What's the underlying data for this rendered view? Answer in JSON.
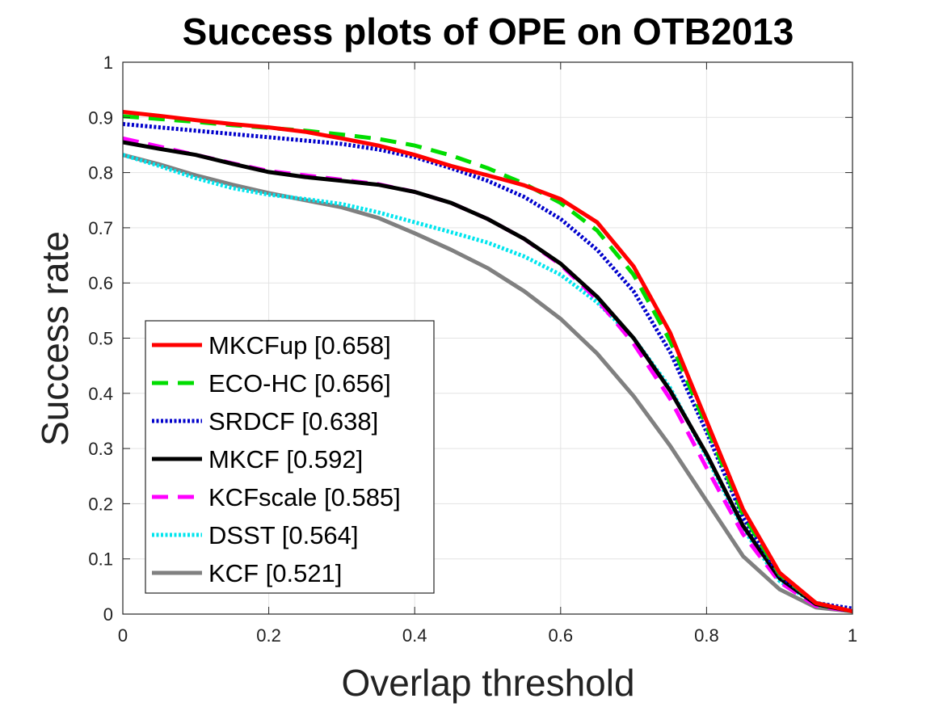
{
  "chart_data": {
    "type": "line",
    "title": "Success plots of OPE on OTB2013",
    "xlabel": "Overlap threshold",
    "ylabel": "Success rate",
    "xlim": [
      0,
      1
    ],
    "ylim": [
      0,
      1
    ],
    "xticks": [
      "0",
      "0.2",
      "0.4",
      "0.6",
      "0.8",
      "1"
    ],
    "yticks": [
      "0",
      "0.1",
      "0.2",
      "0.3",
      "0.4",
      "0.5",
      "0.6",
      "0.7",
      "0.8",
      "0.9",
      "1"
    ],
    "grid": true,
    "legend_position": "bottom-left",
    "series": [
      {
        "name": "MKCFup [0.658]",
        "color": "#ff0000",
        "dash": "solid",
        "x": [
          0,
          0.05,
          0.1,
          0.15,
          0.2,
          0.25,
          0.3,
          0.35,
          0.4,
          0.45,
          0.5,
          0.55,
          0.6,
          0.65,
          0.7,
          0.75,
          0.8,
          0.85,
          0.9,
          0.95,
          1
        ],
        "y": [
          0.91,
          0.903,
          0.895,
          0.888,
          0.882,
          0.874,
          0.862,
          0.849,
          0.832,
          0.812,
          0.795,
          0.777,
          0.752,
          0.71,
          0.63,
          0.51,
          0.35,
          0.19,
          0.075,
          0.02,
          0.005
        ]
      },
      {
        "name": "ECO-HC [0.656]",
        "color": "#00dd00",
        "dash": "dashed",
        "x": [
          0,
          0.05,
          0.1,
          0.15,
          0.2,
          0.25,
          0.3,
          0.35,
          0.4,
          0.45,
          0.5,
          0.55,
          0.6,
          0.65,
          0.7,
          0.75,
          0.8,
          0.85,
          0.9,
          0.95,
          1
        ],
        "y": [
          0.902,
          0.897,
          0.892,
          0.886,
          0.881,
          0.876,
          0.869,
          0.861,
          0.849,
          0.831,
          0.808,
          0.78,
          0.745,
          0.695,
          0.615,
          0.495,
          0.34,
          0.18,
          0.072,
          0.02,
          0.005
        ]
      },
      {
        "name": "SRDCF [0.638]",
        "color": "#0000cc",
        "dash": "dotted",
        "x": [
          0,
          0.05,
          0.1,
          0.15,
          0.2,
          0.25,
          0.3,
          0.35,
          0.4,
          0.45,
          0.5,
          0.55,
          0.6,
          0.65,
          0.7,
          0.75,
          0.8,
          0.85,
          0.9,
          0.95,
          1
        ],
        "y": [
          0.888,
          0.882,
          0.876,
          0.87,
          0.864,
          0.858,
          0.852,
          0.842,
          0.828,
          0.808,
          0.785,
          0.756,
          0.716,
          0.66,
          0.585,
          0.475,
          0.33,
          0.175,
          0.07,
          0.02,
          0.01
        ]
      },
      {
        "name": "MKCF [0.592]",
        "color": "#000000",
        "dash": "solid",
        "x": [
          0,
          0.05,
          0.1,
          0.15,
          0.2,
          0.25,
          0.3,
          0.35,
          0.4,
          0.45,
          0.5,
          0.55,
          0.6,
          0.65,
          0.7,
          0.75,
          0.8,
          0.85,
          0.9,
          0.95,
          1
        ],
        "y": [
          0.855,
          0.843,
          0.832,
          0.816,
          0.801,
          0.792,
          0.785,
          0.778,
          0.765,
          0.745,
          0.716,
          0.68,
          0.635,
          0.575,
          0.5,
          0.405,
          0.29,
          0.16,
          0.065,
          0.018,
          0.005
        ]
      },
      {
        "name": "KCFscale [0.585]",
        "color": "#ff00ff",
        "dash": "dashed",
        "x": [
          0,
          0.05,
          0.1,
          0.15,
          0.2,
          0.25,
          0.3,
          0.35,
          0.4,
          0.45,
          0.5,
          0.55,
          0.6,
          0.65,
          0.7,
          0.75,
          0.8,
          0.85,
          0.9,
          0.95,
          1
        ],
        "y": [
          0.862,
          0.847,
          0.832,
          0.817,
          0.803,
          0.795,
          0.787,
          0.779,
          0.765,
          0.745,
          0.716,
          0.68,
          0.633,
          0.57,
          0.49,
          0.39,
          0.265,
          0.145,
          0.058,
          0.015,
          0.005
        ]
      },
      {
        "name": "DSST [0.564]",
        "color": "#00e5ee",
        "dash": "dotted",
        "x": [
          0,
          0.05,
          0.1,
          0.15,
          0.2,
          0.25,
          0.3,
          0.35,
          0.4,
          0.45,
          0.5,
          0.55,
          0.6,
          0.65,
          0.7,
          0.75,
          0.8,
          0.85,
          0.9,
          0.95,
          1
        ],
        "y": [
          0.832,
          0.812,
          0.79,
          0.772,
          0.76,
          0.752,
          0.743,
          0.728,
          0.71,
          0.692,
          0.673,
          0.648,
          0.615,
          0.565,
          0.5,
          0.41,
          0.285,
          0.155,
          0.06,
          0.018,
          0.005
        ]
      },
      {
        "name": "KCF [0.521]",
        "color": "#808080",
        "dash": "solid",
        "x": [
          0,
          0.05,
          0.1,
          0.15,
          0.2,
          0.25,
          0.3,
          0.35,
          0.4,
          0.45,
          0.5,
          0.55,
          0.6,
          0.65,
          0.7,
          0.75,
          0.8,
          0.85,
          0.9,
          0.95,
          1
        ],
        "y": [
          0.832,
          0.815,
          0.795,
          0.778,
          0.763,
          0.75,
          0.737,
          0.718,
          0.69,
          0.66,
          0.627,
          0.585,
          0.535,
          0.472,
          0.395,
          0.305,
          0.205,
          0.105,
          0.045,
          0.012,
          0.005
        ]
      }
    ]
  }
}
